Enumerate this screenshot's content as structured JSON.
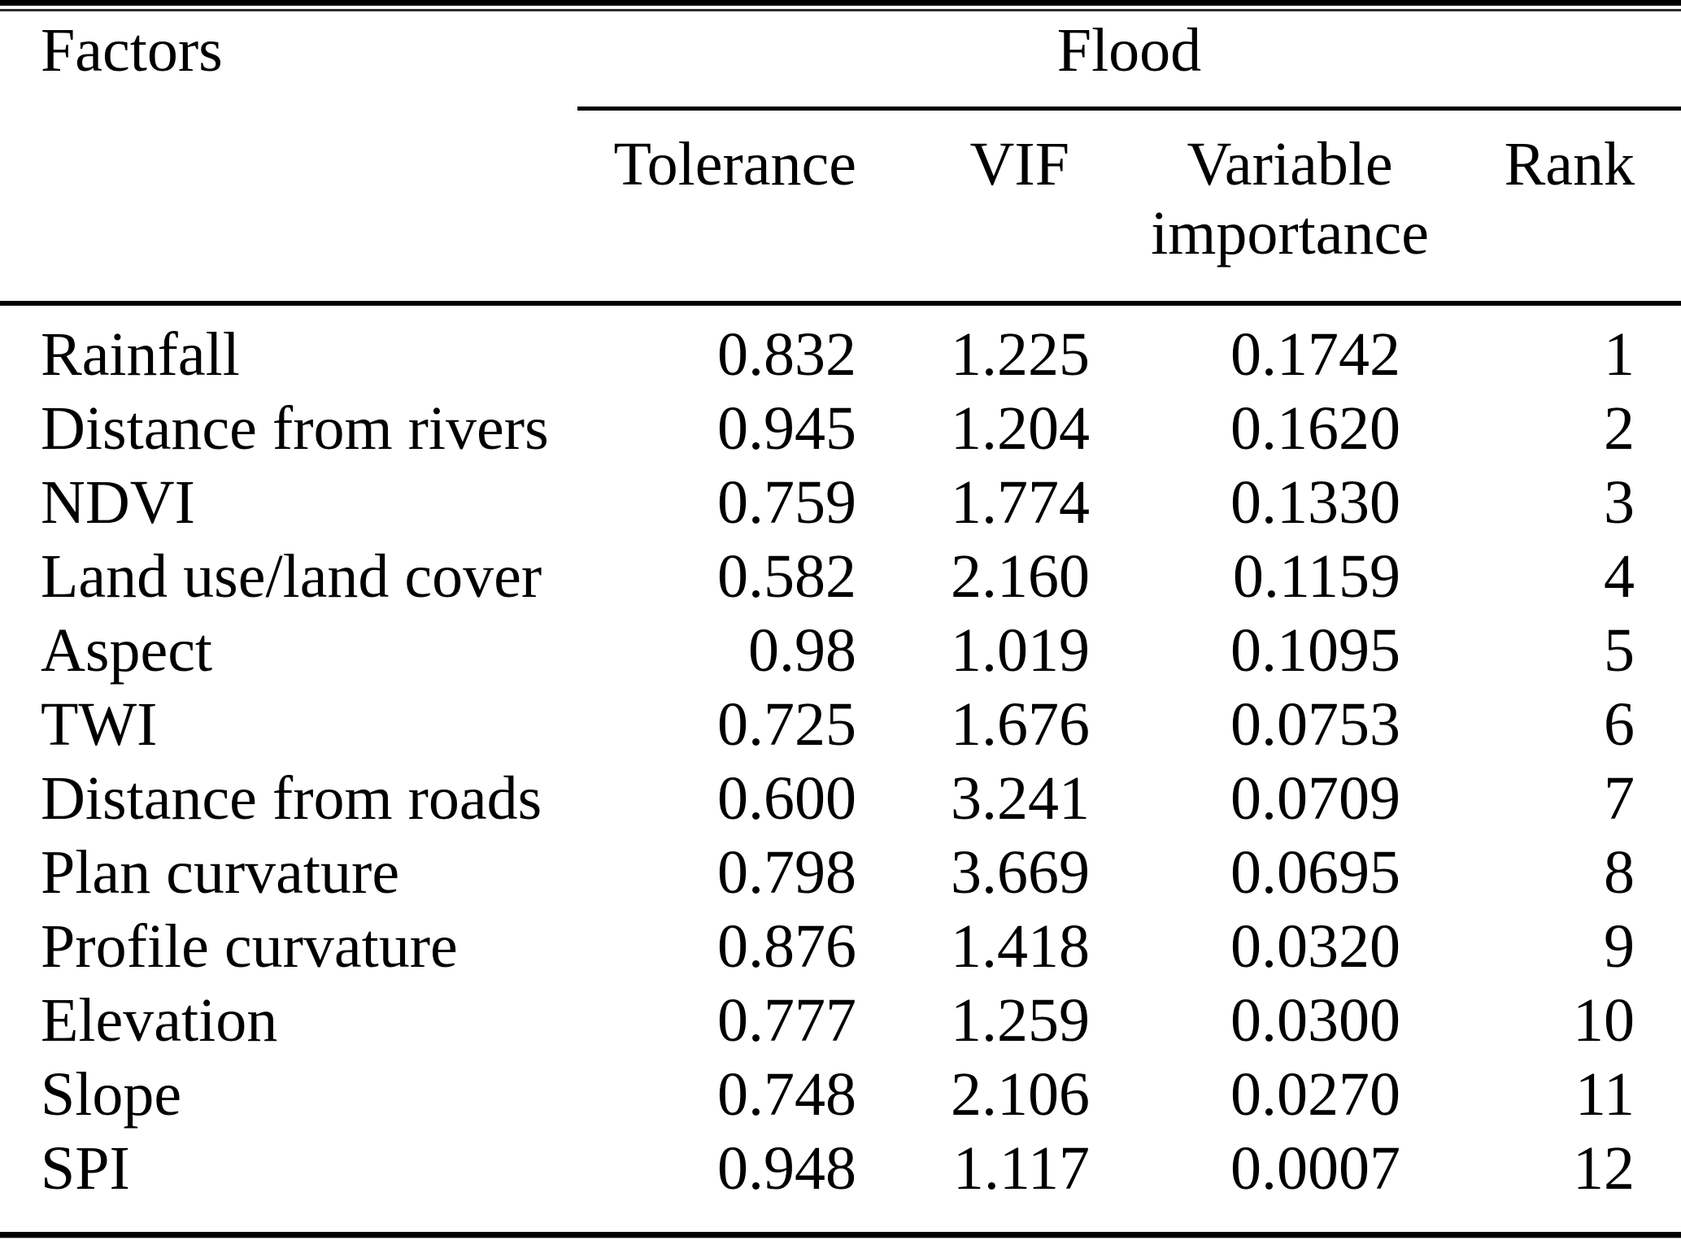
{
  "page": {
    "background_color": "#ffffff",
    "text_color": "#000000",
    "rule_color": "#000000"
  },
  "table": {
    "corner_header": "Factors",
    "group_header": "Flood",
    "columns": {
      "tolerance": "Tolerance",
      "vif": "VIF",
      "variable_importance_line1": "Variable",
      "variable_importance_line2": "importance",
      "rank": "Rank"
    },
    "rows": [
      {
        "factor": "Rainfall",
        "tolerance": "0.832",
        "vif": "1.225",
        "variable_importance": "0.1742",
        "rank": "1"
      },
      {
        "factor": "Distance from rivers",
        "tolerance": "0.945",
        "vif": "1.204",
        "variable_importance": "0.1620",
        "rank": "2"
      },
      {
        "factor": "NDVI",
        "tolerance": "0.759",
        "vif": "1.774",
        "variable_importance": "0.1330",
        "rank": "3"
      },
      {
        "factor": "Land use/land cover",
        "tolerance": "0.582",
        "vif": "2.160",
        "variable_importance": "0.1159",
        "rank": "4"
      },
      {
        "factor": "Aspect",
        "tolerance": "0.98",
        "vif": "1.019",
        "variable_importance": "0.1095",
        "rank": "5"
      },
      {
        "factor": "TWI",
        "tolerance": "0.725",
        "vif": "1.676",
        "variable_importance": "0.0753",
        "rank": "6"
      },
      {
        "factor": "Distance from roads",
        "tolerance": "0.600",
        "vif": "3.241",
        "variable_importance": "0.0709",
        "rank": "7"
      },
      {
        "factor": "Plan curvature",
        "tolerance": "0.798",
        "vif": "3.669",
        "variable_importance": "0.0695",
        "rank": "8"
      },
      {
        "factor": "Profile curvature",
        "tolerance": "0.876",
        "vif": "1.418",
        "variable_importance": "0.0320",
        "rank": "9"
      },
      {
        "factor": "Elevation",
        "tolerance": "0.777",
        "vif": "1.259",
        "variable_importance": "0.0300",
        "rank": "10"
      },
      {
        "factor": "Slope",
        "tolerance": "0.748",
        "vif": "2.106",
        "variable_importance": "0.0270",
        "rank": "11"
      },
      {
        "factor": "SPI",
        "tolerance": "0.948",
        "vif": "1.117",
        "variable_importance": "0.0007",
        "rank": "12"
      }
    ]
  }
}
